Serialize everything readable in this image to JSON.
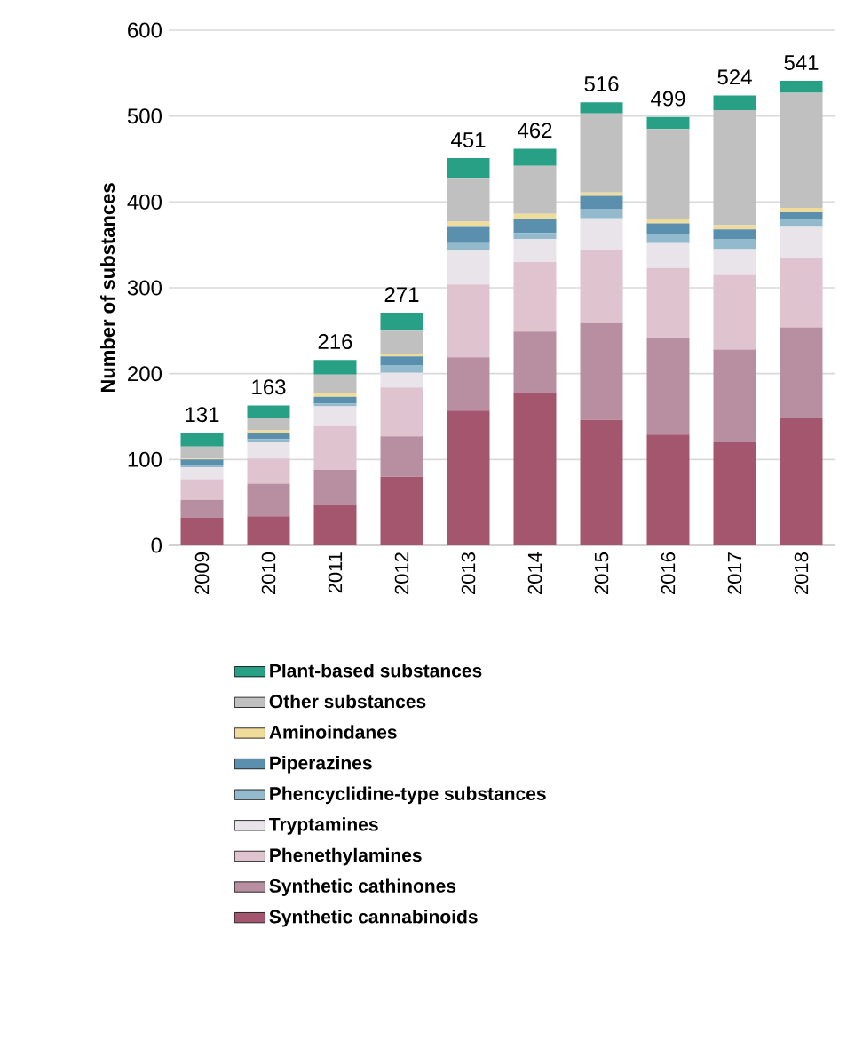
{
  "chart_data": {
    "type": "bar",
    "stacked": true,
    "ylabel": "Number of substances",
    "categories": [
      "2009",
      "2010",
      "2011",
      "2012",
      "2013",
      "2014",
      "2015",
      "2016",
      "2017",
      "2018"
    ],
    "series": [
      {
        "name": "Synthetic cannabinoids",
        "color": "#a4566f",
        "values": [
          32,
          34,
          47,
          80,
          157,
          178,
          146,
          129,
          120,
          148
        ]
      },
      {
        "name": "Synthetic cathinones",
        "color": "#b88fa0",
        "values": [
          21,
          38,
          41,
          47,
          62,
          71,
          113,
          113,
          108,
          106
        ]
      },
      {
        "name": "Phenethylamines",
        "color": "#dfc3cf",
        "values": [
          24,
          29,
          51,
          57,
          85,
          81,
          85,
          81,
          87,
          81
        ]
      },
      {
        "name": "Tryptamines",
        "color": "#e8e4ea",
        "values": [
          14,
          19,
          23,
          17,
          40,
          27,
          37,
          29,
          30,
          36
        ]
      },
      {
        "name": "Phencyclidine-type substances",
        "color": "#93b9cc",
        "values": [
          3,
          4,
          3,
          9,
          8,
          7,
          11,
          10,
          12,
          9
        ]
      },
      {
        "name": "Piperazines",
        "color": "#5a8fad",
        "values": [
          6,
          7,
          8,
          10,
          19,
          16,
          15,
          13,
          11,
          8
        ]
      },
      {
        "name": "Aminoindanes",
        "color": "#f0dc9a",
        "values": [
          1,
          3,
          4,
          3,
          6,
          6,
          4,
          5,
          5,
          5
        ]
      },
      {
        "name": "Other substances",
        "color": "#c0c0c0",
        "values": [
          14,
          14,
          22,
          27,
          51,
          56,
          92,
          105,
          134,
          134
        ]
      },
      {
        "name": "Plant-based substances",
        "color": "#27a085",
        "values": [
          16,
          15,
          17,
          21,
          23,
          20,
          13,
          14,
          17,
          14
        ]
      }
    ],
    "totals": [
      "131",
      "163",
      "216",
      "271",
      "451",
      "462",
      "516",
      "499",
      "524",
      "541"
    ],
    "ylim": [
      0,
      600
    ],
    "yticks": [
      0,
      100,
      200,
      300,
      400,
      500,
      600
    ],
    "grid": "y",
    "legend": "bottom"
  }
}
